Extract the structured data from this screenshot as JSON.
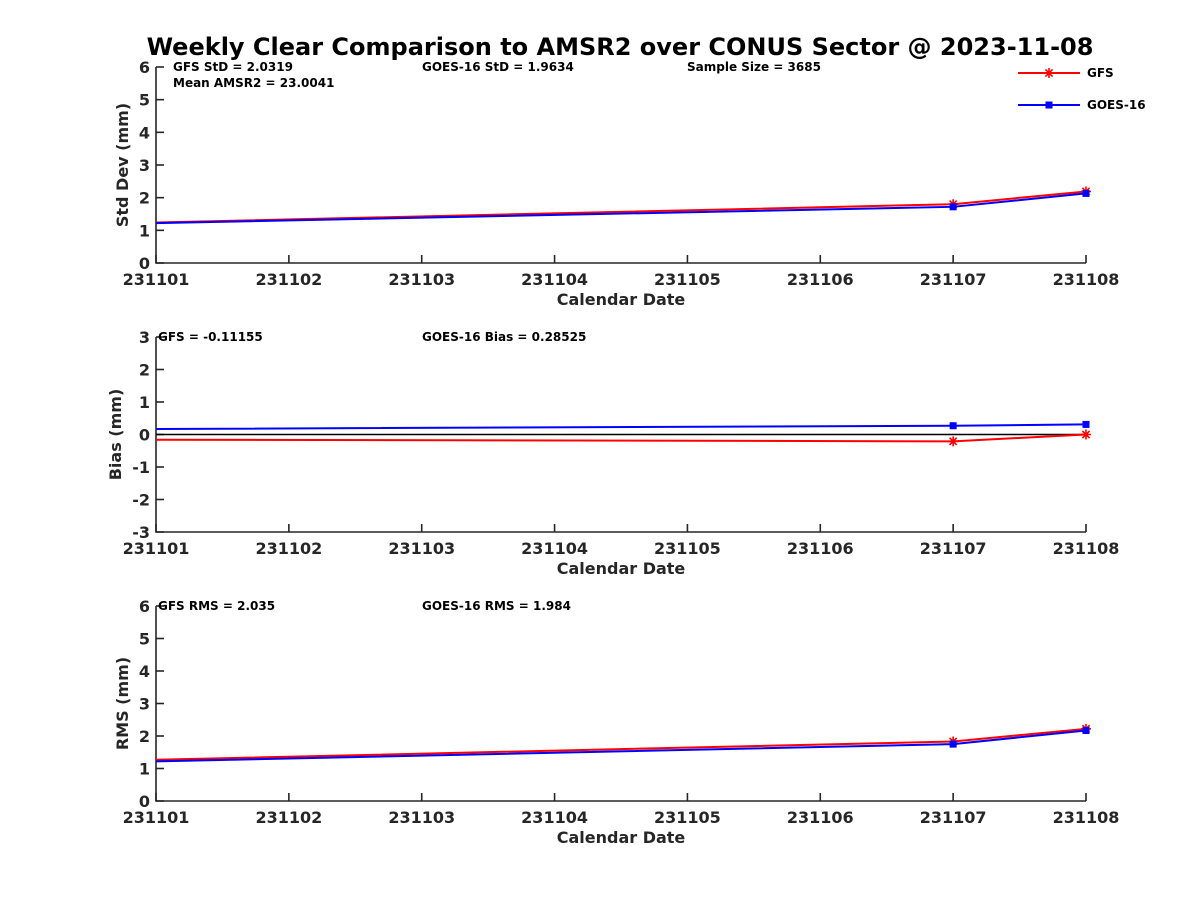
{
  "chart_data": {
    "title": "Weekly Clear Comparison to AMSR2 over CONUS Sector @ 2023-11-08",
    "x_tick_labels": [
      "231101",
      "231102",
      "231103",
      "231104",
      "231105",
      "231106",
      "231107",
      "231108"
    ],
    "x_values": [
      1,
      2,
      3,
      4,
      5,
      6,
      7,
      8
    ],
    "legend": {
      "placement": "top-right",
      "entries": [
        {
          "name": "GFS",
          "color": "#ff0000",
          "marker": "asterisk"
        },
        {
          "name": "GOES-16",
          "color": "#0000ff",
          "marker": "square"
        }
      ]
    },
    "panels": [
      {
        "type": "line",
        "ylabel": "Std Dev (mm)",
        "xlabel": "Calendar Date",
        "ylim": [
          0,
          6
        ],
        "yticks": [
          "0",
          "1",
          "2",
          "3",
          "4",
          "5",
          "6"
        ],
        "annotations": [
          "GFS StD = 2.0319",
          "GOES-16 StD = 1.9634",
          "Sample Size = 3685",
          "Mean AMSR2 = 23.0041"
        ],
        "zero_line": false,
        "series": [
          {
            "name": "GFS",
            "color": "#ff0000",
            "marker": "asterisk",
            "x": [
              1,
              7,
              8
            ],
            "y": [
              1.24,
              1.8,
              2.19
            ]
          },
          {
            "name": "GOES-16",
            "color": "#0000ff",
            "marker": "square",
            "x": [
              1,
              7,
              8
            ],
            "y": [
              1.22,
              1.72,
              2.13
            ]
          }
        ]
      },
      {
        "type": "line",
        "ylabel": "Bias (mm)",
        "xlabel": "Calendar Date",
        "ylim": [
          -3,
          3
        ],
        "yticks": [
          "-3",
          "-2",
          "-1",
          "0",
          "1",
          "2",
          "3"
        ],
        "annotations": [
          "GFS = -0.11155",
          "GOES-16 Bias  = 0.28525"
        ],
        "zero_line": true,
        "series": [
          {
            "name": "GFS",
            "color": "#ff0000",
            "marker": "asterisk",
            "x": [
              1,
              7,
              8
            ],
            "y": [
              -0.16,
              -0.21,
              0.0
            ]
          },
          {
            "name": "GOES-16",
            "color": "#0000ff",
            "marker": "square",
            "x": [
              1,
              7,
              8
            ],
            "y": [
              0.17,
              0.27,
              0.31
            ]
          }
        ]
      },
      {
        "type": "line",
        "ylabel": "RMS (mm)",
        "xlabel": "Calendar Date",
        "ylim": [
          0,
          6
        ],
        "yticks": [
          "0",
          "1",
          "2",
          "3",
          "4",
          "5",
          "6"
        ],
        "annotations": [
          "GFS RMS = 2.035",
          "GOES-16 RMS = 1.984"
        ],
        "zero_line": false,
        "series": [
          {
            "name": "GFS",
            "color": "#ff0000",
            "marker": "asterisk",
            "x": [
              1,
              7,
              8
            ],
            "y": [
              1.27,
              1.83,
              2.22
            ]
          },
          {
            "name": "GOES-16",
            "color": "#0000ff",
            "marker": "square",
            "x": [
              1,
              7,
              8
            ],
            "y": [
              1.22,
              1.75,
              2.17
            ]
          }
        ]
      }
    ]
  }
}
